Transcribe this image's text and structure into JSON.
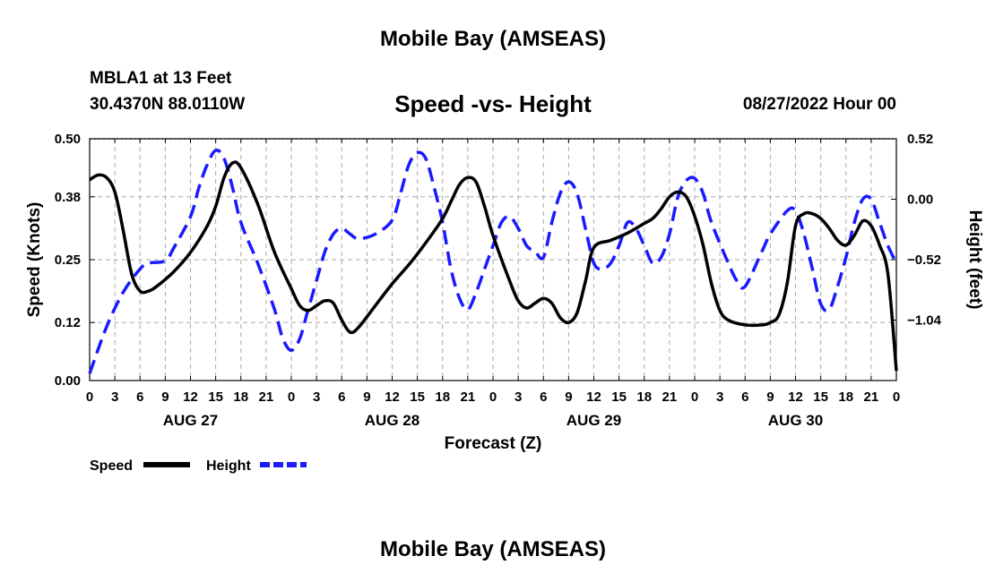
{
  "header": {
    "title": "Mobile Bay (AMSEAS)",
    "station": "MBLA1 at 13 Feet",
    "coordinates": "30.4370N  88.0110W",
    "subtitle": "Speed -vs- Height",
    "datetime": "08/27/2022 Hour 00"
  },
  "footer": {
    "title": "Mobile Bay (AMSEAS)"
  },
  "chart_data": {
    "type": "line",
    "title": "Speed -vs- Height",
    "xlabel": "Forecast (Z)",
    "ylabel_left": "Speed (Knots)",
    "ylabel_right": "Height (feet)",
    "xlim": [
      0,
      96
    ],
    "ylim_left": [
      0,
      0.5
    ],
    "ylim_right": [
      -1.56,
      0.52
    ],
    "x_ticks": [
      0,
      3,
      6,
      9,
      12,
      15,
      18,
      21,
      24,
      27,
      30,
      33,
      36,
      39,
      42,
      45,
      48,
      51,
      54,
      57,
      60,
      63,
      66,
      69,
      72,
      75,
      78,
      81,
      84,
      87,
      90,
      93,
      96
    ],
    "x_tick_labels": [
      "0",
      "3",
      "6",
      "9",
      "12",
      "15",
      "18",
      "21",
      "0",
      "3",
      "6",
      "9",
      "12",
      "15",
      "18",
      "21",
      "0",
      "3",
      "6",
      "9",
      "12",
      "15",
      "18",
      "21",
      "0",
      "3",
      "6",
      "9",
      "12",
      "15",
      "18",
      "21",
      "0"
    ],
    "day_labels": [
      {
        "x": 12,
        "label": "AUG 27"
      },
      {
        "x": 36,
        "label": "AUG 28"
      },
      {
        "x": 60,
        "label": "AUG 29"
      },
      {
        "x": 84,
        "label": "AUG 30"
      }
    ],
    "y_left_ticks": [
      0.0,
      0.12,
      0.25,
      0.38,
      0.5
    ],
    "y_left_tick_labels": [
      "0.00",
      "0.12",
      "0.25",
      "0.38",
      "0.50"
    ],
    "y_right_ticks": [
      -1.04,
      -0.52,
      0.0,
      0.52
    ],
    "y_right_tick_labels": [
      "−1.04",
      "−0.52",
      "0.00",
      "0.52"
    ],
    "grid": true,
    "legend_position": "bottom-left",
    "series": [
      {
        "name": "Speed",
        "axis": "left",
        "color": "#000000",
        "dash": "solid",
        "points": [
          [
            0,
            0.415
          ],
          [
            1,
            0.425
          ],
          [
            2,
            0.42
          ],
          [
            3,
            0.39
          ],
          [
            4,
            0.31
          ],
          [
            5,
            0.22
          ],
          [
            6,
            0.185
          ],
          [
            7,
            0.185
          ],
          [
            8,
            0.195
          ],
          [
            10,
            0.225
          ],
          [
            12,
            0.265
          ],
          [
            14,
            0.32
          ],
          [
            15,
            0.36
          ],
          [
            16,
            0.42
          ],
          [
            17,
            0.45
          ],
          [
            18,
            0.44
          ],
          [
            20,
            0.365
          ],
          [
            22,
            0.265
          ],
          [
            24,
            0.19
          ],
          [
            25,
            0.155
          ],
          [
            26,
            0.145
          ],
          [
            27,
            0.155
          ],
          [
            28,
            0.165
          ],
          [
            29,
            0.16
          ],
          [
            30,
            0.125
          ],
          [
            31,
            0.1
          ],
          [
            32,
            0.11
          ],
          [
            34,
            0.155
          ],
          [
            36,
            0.2
          ],
          [
            38,
            0.24
          ],
          [
            40,
            0.285
          ],
          [
            42,
            0.335
          ],
          [
            43,
            0.37
          ],
          [
            44,
            0.405
          ],
          [
            45,
            0.42
          ],
          [
            46,
            0.41
          ],
          [
            47,
            0.36
          ],
          [
            48,
            0.3
          ],
          [
            50,
            0.205
          ],
          [
            51,
            0.165
          ],
          [
            52,
            0.15
          ],
          [
            53,
            0.16
          ],
          [
            54,
            0.17
          ],
          [
            55,
            0.16
          ],
          [
            56,
            0.13
          ],
          [
            57,
            0.12
          ],
          [
            58,
            0.14
          ],
          [
            59,
            0.205
          ],
          [
            60,
            0.275
          ],
          [
            62,
            0.29
          ],
          [
            64,
            0.305
          ],
          [
            66,
            0.325
          ],
          [
            67,
            0.335
          ],
          [
            68,
            0.355
          ],
          [
            69,
            0.38
          ],
          [
            70,
            0.39
          ],
          [
            71,
            0.38
          ],
          [
            72,
            0.34
          ],
          [
            73,
            0.28
          ],
          [
            74,
            0.2
          ],
          [
            75,
            0.145
          ],
          [
            76,
            0.125
          ],
          [
            78,
            0.115
          ],
          [
            80,
            0.115
          ],
          [
            81,
            0.12
          ],
          [
            82,
            0.135
          ],
          [
            83,
            0.2
          ],
          [
            84,
            0.32
          ],
          [
            85,
            0.345
          ],
          [
            86,
            0.345
          ],
          [
            87,
            0.335
          ],
          [
            88,
            0.315
          ],
          [
            89,
            0.29
          ],
          [
            90,
            0.28
          ],
          [
            91,
            0.3
          ],
          [
            92,
            0.33
          ],
          [
            93,
            0.32
          ],
          [
            94,
            0.28
          ],
          [
            95,
            0.22
          ],
          [
            96,
            0.02
          ]
        ]
      },
      {
        "name": "Height",
        "axis": "right",
        "color": "#1a1aff",
        "dash": "dashed",
        "points": [
          [
            0,
            -1.5
          ],
          [
            2,
            -1.1
          ],
          [
            4,
            -0.8
          ],
          [
            6,
            -0.6
          ],
          [
            7,
            -0.55
          ],
          [
            9,
            -0.53
          ],
          [
            10,
            -0.42
          ],
          [
            12,
            -0.15
          ],
          [
            13,
            0.1
          ],
          [
            14,
            0.3
          ],
          [
            15,
            0.42
          ],
          [
            16,
            0.35
          ],
          [
            17,
            0.1
          ],
          [
            18,
            -0.2
          ],
          [
            20,
            -0.55
          ],
          [
            22,
            -0.95
          ],
          [
            23,
            -1.2
          ],
          [
            24,
            -1.3
          ],
          [
            25,
            -1.2
          ],
          [
            26,
            -0.95
          ],
          [
            27,
            -0.7
          ],
          [
            28,
            -0.45
          ],
          [
            29,
            -0.3
          ],
          [
            30,
            -0.25
          ],
          [
            31,
            -0.3
          ],
          [
            32,
            -0.34
          ],
          [
            34,
            -0.3
          ],
          [
            36,
            -0.18
          ],
          [
            37,
            0.05
          ],
          [
            38,
            0.3
          ],
          [
            39,
            0.4
          ],
          [
            40,
            0.35
          ],
          [
            41,
            0.1
          ],
          [
            42,
            -0.2
          ],
          [
            43,
            -0.6
          ],
          [
            44,
            -0.85
          ],
          [
            45,
            -0.95
          ],
          [
            46,
            -0.8
          ],
          [
            47,
            -0.6
          ],
          [
            48,
            -0.4
          ],
          [
            49,
            -0.2
          ],
          [
            50,
            -0.15
          ],
          [
            51,
            -0.25
          ],
          [
            52,
            -0.4
          ],
          [
            53,
            -0.45
          ],
          [
            54,
            -0.5
          ],
          [
            55,
            -0.2
          ],
          [
            56,
            0.05
          ],
          [
            57,
            0.15
          ],
          [
            58,
            0.05
          ],
          [
            59,
            -0.25
          ],
          [
            60,
            -0.55
          ],
          [
            61,
            -0.6
          ],
          [
            62,
            -0.55
          ],
          [
            63,
            -0.4
          ],
          [
            64,
            -0.2
          ],
          [
            65,
            -0.25
          ],
          [
            66,
            -0.4
          ],
          [
            67,
            -0.55
          ],
          [
            68,
            -0.5
          ],
          [
            69,
            -0.3
          ],
          [
            70,
            0.02
          ],
          [
            71,
            0.16
          ],
          [
            72,
            0.18
          ],
          [
            73,
            0.05
          ],
          [
            74,
            -0.2
          ],
          [
            76,
            -0.55
          ],
          [
            77,
            -0.7
          ],
          [
            78,
            -0.75
          ],
          [
            80,
            -0.45
          ],
          [
            81,
            -0.3
          ],
          [
            83,
            -0.1
          ],
          [
            84,
            -0.1
          ],
          [
            85,
            -0.3
          ],
          [
            86,
            -0.6
          ],
          [
            87,
            -0.9
          ],
          [
            88,
            -0.95
          ],
          [
            89,
            -0.75
          ],
          [
            90,
            -0.5
          ],
          [
            91,
            -0.2
          ],
          [
            92,
            0.0
          ],
          [
            93,
            0.0
          ],
          [
            94,
            -0.2
          ],
          [
            95,
            -0.4
          ],
          [
            96,
            -0.55
          ]
        ]
      }
    ]
  },
  "legend": {
    "items": [
      {
        "label": "Speed",
        "color": "#000000"
      },
      {
        "label": "Height",
        "color": "#1a1aff"
      }
    ]
  }
}
